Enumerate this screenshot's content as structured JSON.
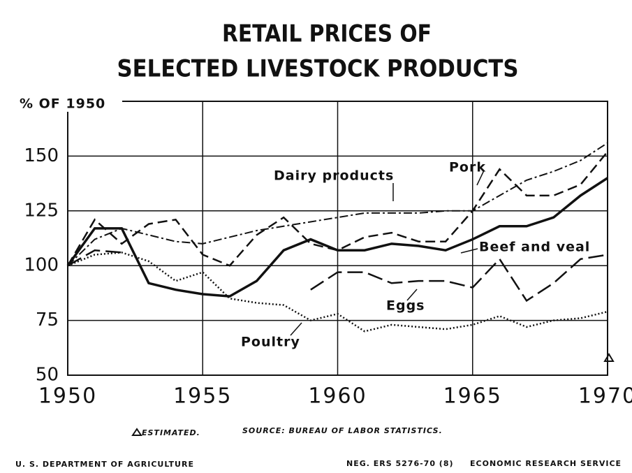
{
  "chart_data": {
    "type": "line",
    "title": [
      "RETAIL PRICES OF",
      "SELECTED LIVESTOCK PRODUCTS"
    ],
    "ylabel": "% OF 1950",
    "x": [
      1950,
      1951,
      1952,
      1953,
      1954,
      1955,
      1956,
      1957,
      1958,
      1959,
      1960,
      1961,
      1962,
      1963,
      1964,
      1965,
      1966,
      1967,
      1968,
      1969,
      1970
    ],
    "xlim": [
      1950,
      1970
    ],
    "xticks": [
      1950,
      1955,
      1960,
      1965,
      1970
    ],
    "ylim": [
      50,
      175
    ],
    "yticks": [
      50,
      75,
      100,
      125,
      150
    ],
    "grid": true,
    "series": [
      {
        "name": "Pork",
        "color": "#111111",
        "style": "dashed",
        "values": [
          100,
          121,
          110,
          119,
          121,
          105,
          100,
          114,
          122,
          110,
          107,
          113,
          115,
          111,
          111,
          125,
          144,
          132,
          132,
          137,
          152
        ]
      },
      {
        "name": "Dairy products",
        "color": "#111111",
        "style": "dash-dot",
        "values": [
          100,
          112,
          117,
          114,
          111,
          110,
          113,
          116,
          118,
          120,
          122,
          124,
          124,
          124,
          125,
          125,
          132,
          139,
          143,
          148,
          156
        ]
      },
      {
        "name": "Beef and veal",
        "color": "#111111",
        "style": "solid",
        "values": [
          100,
          117,
          117,
          92,
          89,
          87,
          86,
          93,
          107,
          112,
          107,
          107,
          110,
          109,
          107,
          112,
          118,
          118,
          122,
          132,
          140
        ]
      },
      {
        "name": "Eggs",
        "color": "#111111",
        "style": "long-dash",
        "values": [
          100,
          107,
          106,
          null,
          null,
          null,
          null,
          null,
          null,
          89,
          97,
          97,
          92,
          93,
          93,
          90,
          103,
          84,
          92,
          103,
          105
        ]
      },
      {
        "name": "Poultry",
        "color": "#111111",
        "style": "dotted",
        "values": [
          100,
          105,
          106,
          102,
          93,
          97,
          85,
          83,
          82,
          75,
          78,
          70,
          73,
          72,
          71,
          73,
          77,
          72,
          75,
          76,
          79
        ]
      }
    ],
    "footnotes": [
      "ESTIMATED.",
      "SOURCE: BUREAU OF LABOR STATISTICS."
    ],
    "footer_left": "U. S. DEPARTMENT OF AGRICULTURE",
    "footer_right": [
      "NEG. ERS 5276-70 (8)",
      "ECONOMIC RESEARCH SERVICE"
    ]
  }
}
